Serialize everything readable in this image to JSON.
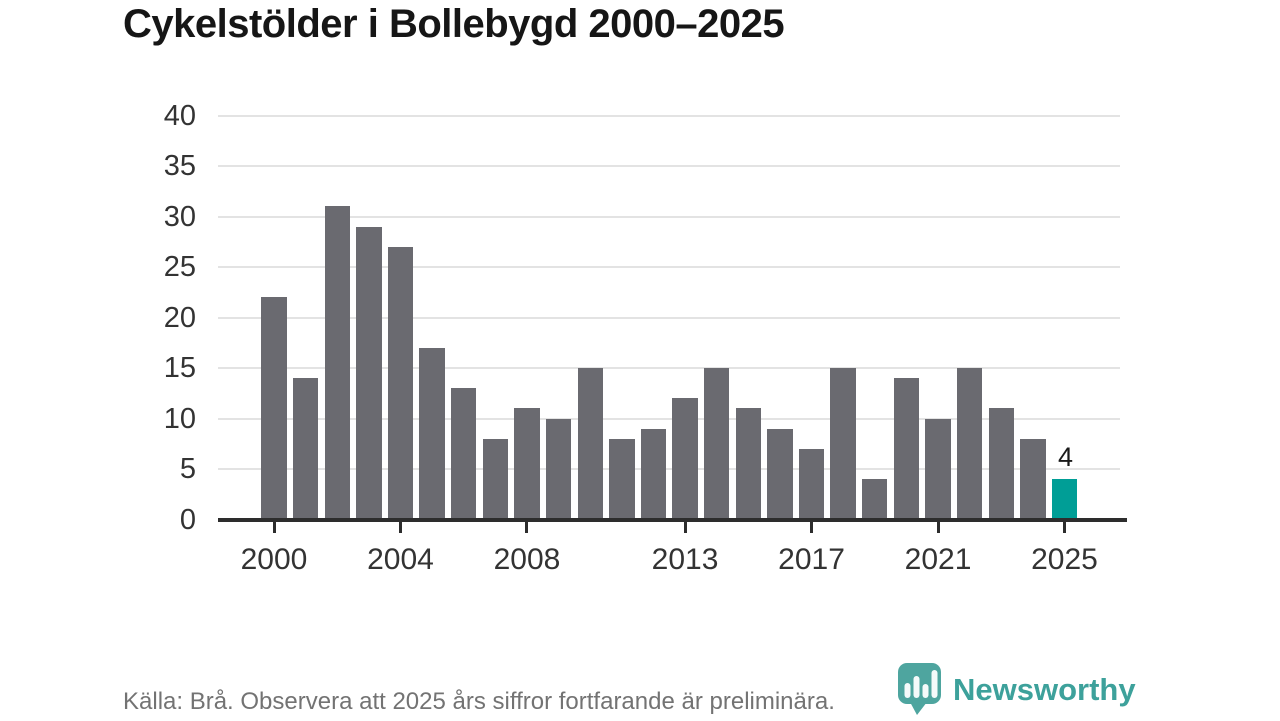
{
  "title": "Cykelstölder i Bollebygd 2000–2025",
  "footer": {
    "source_note": "Källa: Brå. Observera att 2025 års siffror fortfarande är preliminära."
  },
  "logo": {
    "brand": "Newsworthy"
  },
  "colors": {
    "bar_default": "#6a6a70",
    "bar_highlight": "#009e96",
    "gridline": "#e3e3e3",
    "axis": "#2d2d2d",
    "logo_teal": "#3f9e97",
    "logo_text_teal": "#2d9a93"
  },
  "chart_data": {
    "type": "bar",
    "title": "Cykelstölder i Bollebygd 2000–2025",
    "categories": [
      2000,
      2001,
      2002,
      2003,
      2004,
      2005,
      2006,
      2007,
      2008,
      2009,
      2010,
      2011,
      2012,
      2013,
      2014,
      2015,
      2016,
      2017,
      2018,
      2019,
      2020,
      2021,
      2022,
      2023,
      2024,
      2025
    ],
    "values": [
      22,
      14,
      31,
      29,
      27,
      17,
      13,
      8,
      11,
      10,
      15,
      8,
      9,
      12,
      15,
      11,
      9,
      7,
      15,
      4,
      14,
      10,
      15,
      11,
      8,
      4
    ],
    "bar_color": "#6a6a70",
    "highlight": {
      "year": 2025,
      "value": 4,
      "label": "4",
      "color": "#009e96"
    },
    "x_tick_years": [
      2000,
      2004,
      2008,
      2013,
      2017,
      2021,
      2025
    ],
    "x_tick_labels": [
      "2000",
      "2004",
      "2008",
      "2013",
      "2017",
      "2021",
      "2025"
    ],
    "y_ticks": [
      0,
      5,
      10,
      15,
      20,
      25,
      30,
      35,
      40
    ],
    "ylim": [
      0,
      40
    ],
    "xlabel": "",
    "ylabel": "",
    "grid": "horizontal",
    "legend": "none"
  }
}
